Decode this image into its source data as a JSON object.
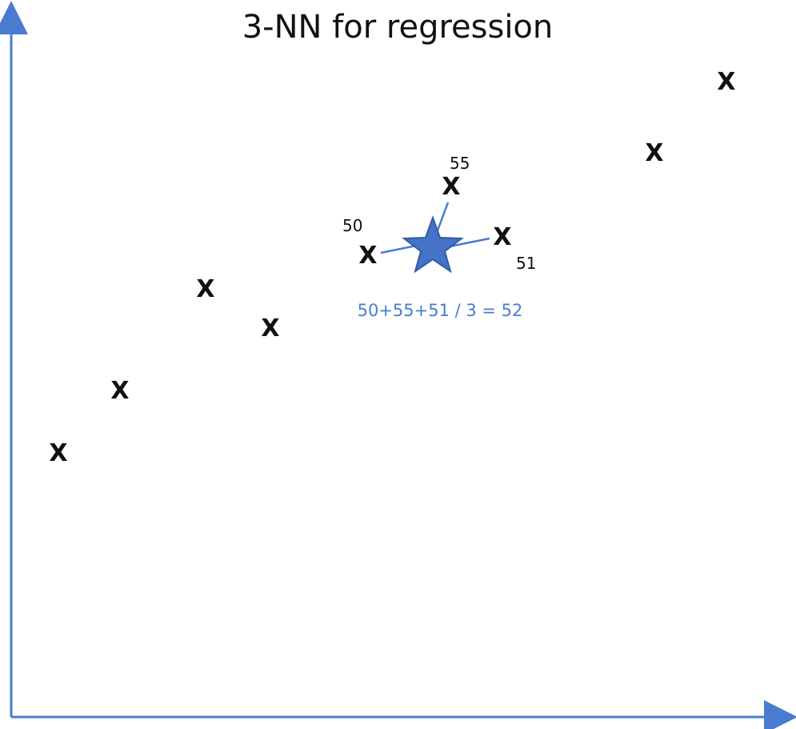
{
  "title": "3-NN for regression",
  "point_marker": "X",
  "neighbor_values": [
    "50",
    "55",
    "51"
  ],
  "formula": "50+55+51 / 3 = 52",
  "colors": {
    "axis": "#4a7bd0",
    "star": "#4673c8",
    "star_stroke": "#2f5ca8",
    "connector": "#4a7bd0",
    "formula": "#4a7bd0",
    "marker": "#111111"
  },
  "icons": {
    "query_point": "star-icon",
    "axis_arrow": "arrow-icon"
  }
}
